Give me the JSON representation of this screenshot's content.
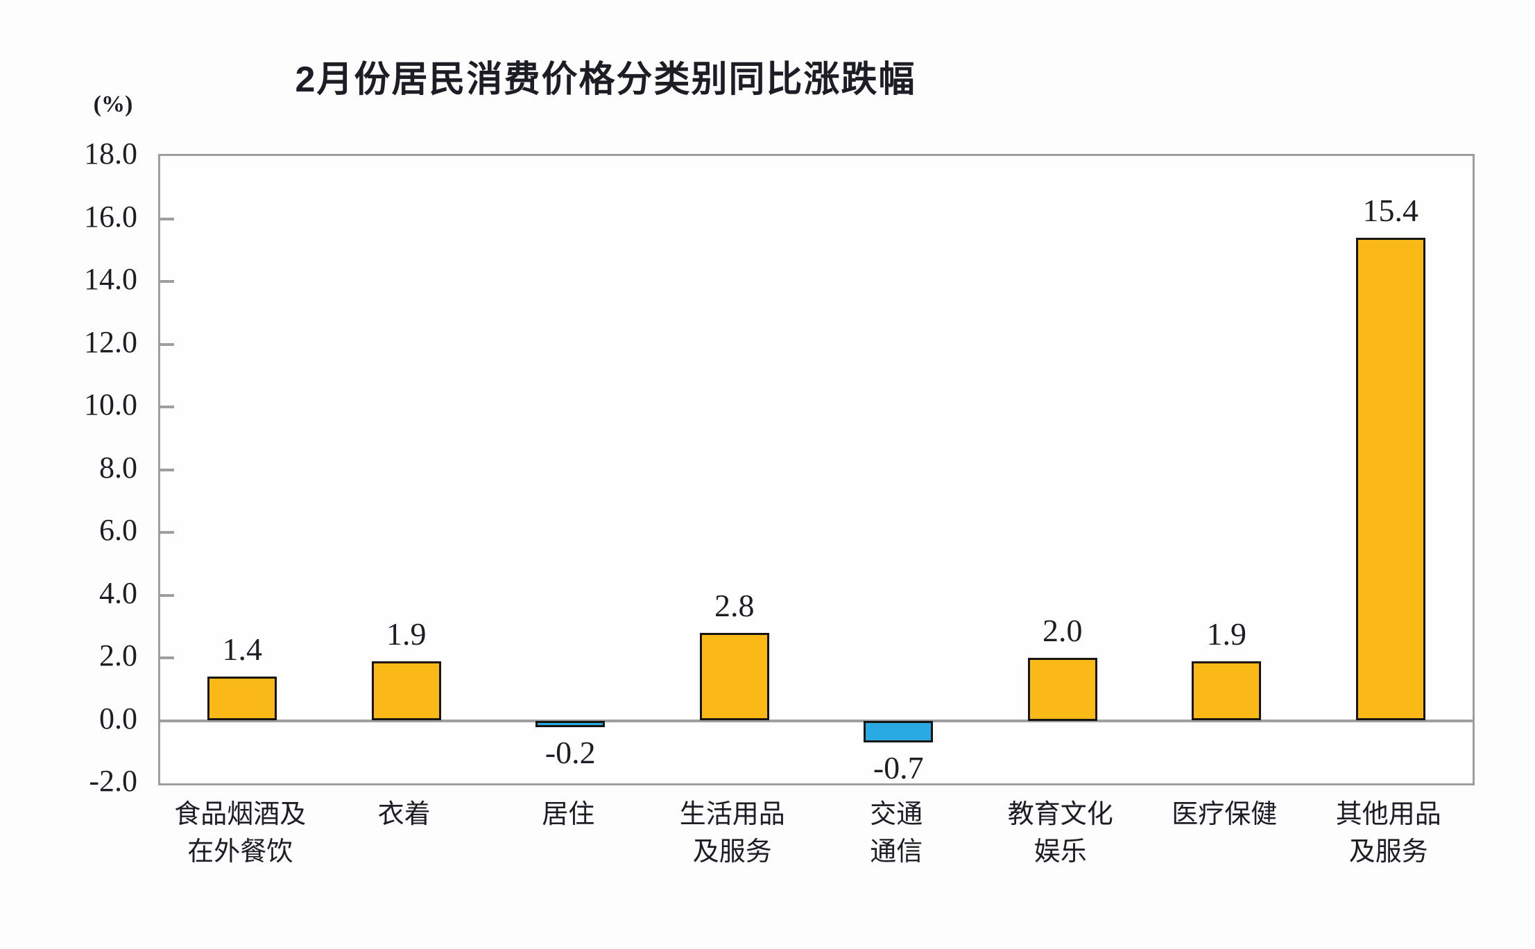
{
  "page": {
    "background": "#fdfdfd"
  },
  "chart_data": {
    "type": "bar",
    "title": "2月份居民消费价格分类别同比涨跌幅",
    "unit_label": "(%)",
    "categories": [
      "食品烟酒及\n在外餐饮",
      "衣着",
      "居住",
      "生活用品\n及服务",
      "交通\n通信",
      "教育文化\n娱乐",
      "医疗保健",
      "其他用品\n及服务"
    ],
    "values": [
      1.4,
      1.9,
      -0.2,
      2.8,
      -0.7,
      2.0,
      1.9,
      15.4
    ],
    "value_labels": [
      "1.4",
      "1.9",
      "-0.2",
      "2.8",
      "-0.7",
      "2.0",
      "1.9",
      "15.4"
    ],
    "xlabel": "",
    "ylabel": "(%)",
    "ylim": [
      -2.0,
      18.0
    ],
    "ytick_step": 2.0,
    "ytick_labels": [
      "18.0",
      "16.0",
      "14.0",
      "12.0",
      "10.0",
      "8.0",
      "6.0",
      "4.0",
      "2.0",
      "0.0",
      "-2.0"
    ],
    "grid": false,
    "legend": "none",
    "colors": {
      "positive_bar": "#FBB917",
      "negative_bar": "#29ABE2",
      "bar_border": "#181410",
      "axis": "#9E9E9E",
      "text": "#1D1D26"
    }
  }
}
